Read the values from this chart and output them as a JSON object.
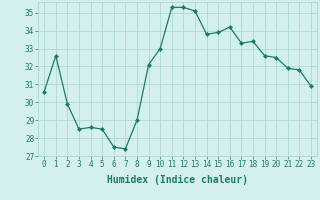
{
  "x": [
    0,
    1,
    2,
    3,
    4,
    5,
    6,
    7,
    8,
    9,
    10,
    11,
    12,
    13,
    14,
    15,
    16,
    17,
    18,
    19,
    20,
    21,
    22,
    23
  ],
  "y": [
    30.6,
    32.6,
    29.9,
    28.5,
    28.6,
    28.5,
    27.5,
    27.4,
    29.0,
    32.1,
    33.0,
    35.3,
    35.3,
    35.1,
    33.8,
    33.9,
    34.2,
    33.3,
    33.4,
    32.6,
    32.5,
    31.9,
    31.8,
    30.9
  ],
  "xlabel": "Humidex (Indice chaleur)",
  "line_color": "#1a7a6e",
  "marker": "D",
  "marker_size": 2,
  "bg_color": "#d4f0ee",
  "grid_color": "#afd8d2",
  "ylim": [
    27,
    35.6
  ],
  "xlim": [
    -0.5,
    23.5
  ],
  "yticks": [
    27,
    28,
    29,
    30,
    31,
    32,
    33,
    34,
    35
  ],
  "xticks": [
    0,
    1,
    2,
    3,
    4,
    5,
    6,
    7,
    8,
    9,
    10,
    11,
    12,
    13,
    14,
    15,
    16,
    17,
    18,
    19,
    20,
    21,
    22,
    23
  ],
  "tick_fontsize": 5.5,
  "xlabel_fontsize": 7.0,
  "linewidth": 0.9
}
